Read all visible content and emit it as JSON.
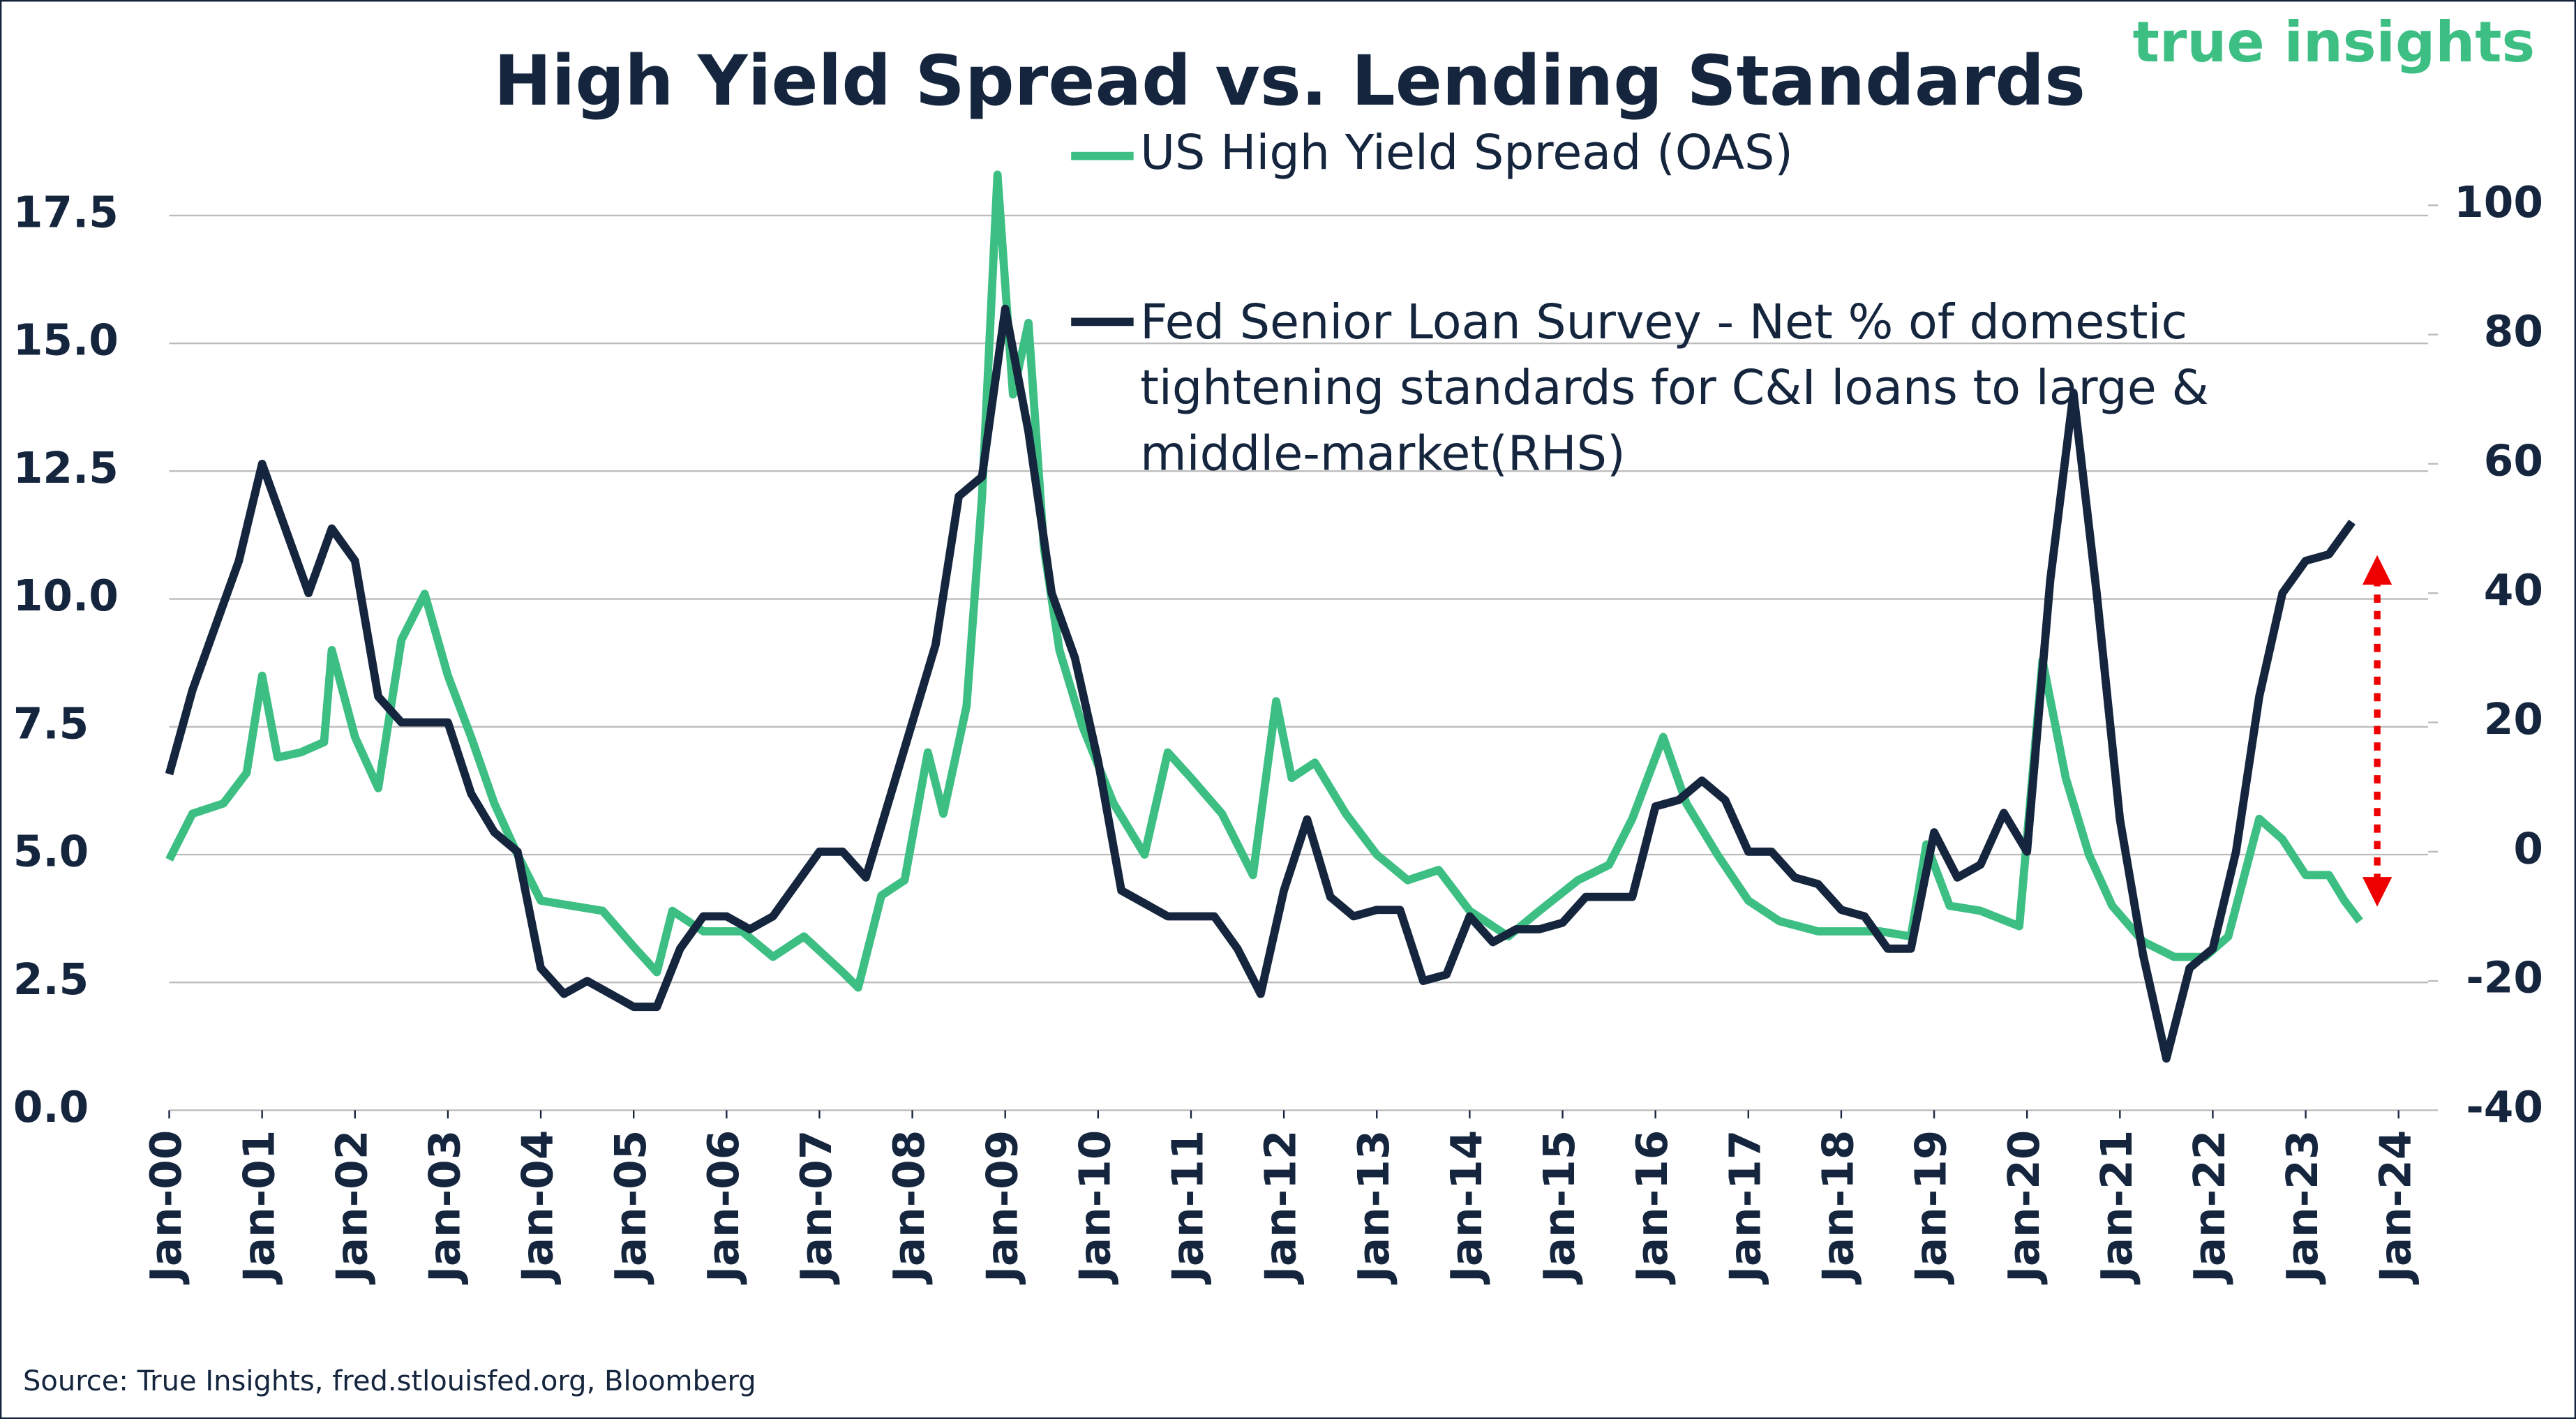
{
  "chart_data": {
    "type": "line",
    "title": "High Yield Spread vs. Lending Standards",
    "brand": "true insights",
    "source": "Source: True Insights, fred.stlouisfed.org, Bloomberg",
    "xlim": [
      "2000-01",
      "2024-01"
    ],
    "xticks": [
      {
        "value": "2000-01",
        "label": "Jan-00"
      },
      {
        "value": "2001-01",
        "label": "Jan-01"
      },
      {
        "value": "2002-01",
        "label": "Jan-02"
      },
      {
        "value": "2003-01",
        "label": "Jan-03"
      },
      {
        "value": "2004-01",
        "label": "Jan-04"
      },
      {
        "value": "2005-01",
        "label": "Jan-05"
      },
      {
        "value": "2006-01",
        "label": "Jan-06"
      },
      {
        "value": "2007-01",
        "label": "Jan-07"
      },
      {
        "value": "2008-01",
        "label": "Jan-08"
      },
      {
        "value": "2009-01",
        "label": "Jan-09"
      },
      {
        "value": "2010-01",
        "label": "Jan-10"
      },
      {
        "value": "2011-01",
        "label": "Jan-11"
      },
      {
        "value": "2012-01",
        "label": "Jan-12"
      },
      {
        "value": "2013-01",
        "label": "Jan-13"
      },
      {
        "value": "2014-01",
        "label": "Jan-14"
      },
      {
        "value": "2015-01",
        "label": "Jan-15"
      },
      {
        "value": "2016-01",
        "label": "Jan-16"
      },
      {
        "value": "2017-01",
        "label": "Jan-17"
      },
      {
        "value": "2018-01",
        "label": "Jan-18"
      },
      {
        "value": "2019-01",
        "label": "Jan-19"
      },
      {
        "value": "2020-01",
        "label": "Jan-20"
      },
      {
        "value": "2021-01",
        "label": "Jan-21"
      },
      {
        "value": "2022-01",
        "label": "Jan-22"
      },
      {
        "value": "2023-01",
        "label": "Jan-23"
      },
      {
        "value": "2024-01",
        "label": "Jan-24"
      }
    ],
    "ylim": [
      0,
      17.7
    ],
    "yticks": [
      {
        "value": 0,
        "label": "0.0"
      },
      2.5,
      {
        "value": 5,
        "label": "5.0"
      },
      7.5,
      {
        "value": 10,
        "label": "10.0"
      },
      12.5,
      {
        "value": 15,
        "label": "15.0"
      },
      17.5
    ],
    "y2lim": [
      -40,
      100
    ],
    "y2ticks": [
      -40,
      -20,
      0,
      20,
      40,
      60,
      80,
      100
    ],
    "grid": true,
    "series": [
      {
        "name": "US High Yield Spread (OAS)",
        "color": "#3dbf84",
        "x": [
          "2000-01",
          "2000-04",
          "2000-08",
          "2000-11",
          "2001-01",
          "2001-03",
          "2001-06",
          "2001-09",
          "2001-10",
          "2002-01",
          "2002-04",
          "2002-07",
          "2002-10",
          "2003-01",
          "2003-04",
          "2003-07",
          "2003-10",
          "2004-01",
          "2004-05",
          "2004-09",
          "2005-01",
          "2005-04",
          "2005-06",
          "2005-10",
          "2006-03",
          "2006-07",
          "2006-11",
          "2007-04",
          "2007-06",
          "2007-09",
          "2007-12",
          "2008-03",
          "2008-05",
          "2008-08",
          "2008-10",
          "2008-12",
          "2009-02",
          "2009-04",
          "2009-06",
          "2009-08",
          "2009-11",
          "2010-03",
          "2010-07",
          "2010-10",
          "2011-01",
          "2011-05",
          "2011-09",
          "2011-12",
          "2012-02",
          "2012-05",
          "2012-09",
          "2013-01",
          "2013-05",
          "2013-09",
          "2014-01",
          "2014-06",
          "2014-10",
          "2015-03",
          "2015-07",
          "2015-10",
          "2016-02",
          "2016-05",
          "2016-09",
          "2017-01",
          "2017-05",
          "2017-10",
          "2018-02",
          "2018-06",
          "2018-10",
          "2018-12",
          "2019-03",
          "2019-07",
          "2019-12",
          "2020-03",
          "2020-06",
          "2020-09",
          "2020-12",
          "2021-04",
          "2021-08",
          "2021-12",
          "2022-03",
          "2022-07",
          "2022-10",
          "2023-01",
          "2023-04",
          "2023-06",
          "2023-08"
        ],
        "values": [
          4.9,
          5.8,
          6.0,
          6.6,
          8.5,
          6.9,
          7.0,
          7.2,
          9.0,
          7.3,
          6.3,
          9.2,
          10.1,
          8.5,
          7.3,
          6.0,
          5.0,
          4.1,
          4.0,
          3.9,
          3.2,
          2.7,
          3.9,
          3.5,
          3.5,
          3.0,
          3.4,
          2.7,
          2.4,
          4.2,
          4.5,
          7.0,
          5.8,
          7.9,
          12.0,
          18.3,
          14.0,
          15.4,
          11.0,
          9.0,
          7.5,
          6.0,
          5.0,
          7.0,
          6.5,
          5.8,
          4.6,
          8.0,
          6.5,
          6.8,
          5.8,
          5.0,
          4.5,
          4.7,
          3.9,
          3.4,
          3.9,
          4.5,
          4.8,
          5.7,
          7.3,
          6.0,
          5.0,
          4.1,
          3.7,
          3.5,
          3.5,
          3.5,
          3.4,
          5.2,
          4.0,
          3.9,
          3.6,
          8.8,
          6.5,
          5.0,
          4.0,
          3.3,
          3.0,
          3.0,
          3.4,
          5.7,
          5.3,
          4.6,
          4.6,
          4.1,
          3.7
        ]
      },
      {
        "name": "Fed Senior Loan Survey - Net % of domestic tightening standards for C&I loans to large & middle-market(RHS)",
        "color": "#14253d",
        "axis": "y2",
        "x": [
          "2000-01",
          "2000-04",
          "2000-07",
          "2000-10",
          "2001-01",
          "2001-04",
          "2001-07",
          "2001-10",
          "2002-01",
          "2002-04",
          "2002-07",
          "2002-10",
          "2003-01",
          "2003-04",
          "2003-07",
          "2003-10",
          "2004-01",
          "2004-04",
          "2004-07",
          "2004-10",
          "2005-01",
          "2005-04",
          "2005-07",
          "2005-10",
          "2006-01",
          "2006-04",
          "2006-07",
          "2006-10",
          "2007-01",
          "2007-04",
          "2007-07",
          "2007-10",
          "2008-01",
          "2008-04",
          "2008-07",
          "2008-10",
          "2009-01",
          "2009-04",
          "2009-07",
          "2009-10",
          "2010-01",
          "2010-04",
          "2010-07",
          "2010-10",
          "2011-01",
          "2011-04",
          "2011-07",
          "2011-10",
          "2012-01",
          "2012-04",
          "2012-07",
          "2012-10",
          "2013-01",
          "2013-04",
          "2013-07",
          "2013-10",
          "2014-01",
          "2014-04",
          "2014-07",
          "2014-10",
          "2015-01",
          "2015-04",
          "2015-07",
          "2015-10",
          "2016-01",
          "2016-04",
          "2016-07",
          "2016-10",
          "2017-01",
          "2017-04",
          "2017-07",
          "2017-10",
          "2018-01",
          "2018-04",
          "2018-07",
          "2018-10",
          "2019-01",
          "2019-04",
          "2019-07",
          "2019-10",
          "2020-01",
          "2020-04",
          "2020-07",
          "2020-10",
          "2021-01",
          "2021-04",
          "2021-07",
          "2021-10",
          "2022-01",
          "2022-04",
          "2022-07",
          "2022-10",
          "2023-01",
          "2023-04",
          "2023-07"
        ],
        "values": [
          12,
          25,
          35,
          45,
          60,
          50,
          40,
          50,
          45,
          24,
          20,
          20,
          20,
          9,
          3,
          0,
          -18,
          -22,
          -20,
          -22,
          -24,
          -24,
          -15,
          -10,
          -10,
          -12,
          -10,
          -5,
          0,
          0,
          -4,
          8,
          20,
          32,
          55,
          58,
          84,
          65,
          40,
          30,
          14,
          -6,
          -8,
          -10,
          -10,
          -10,
          -15,
          -22,
          -6,
          5,
          -7,
          -10,
          -9,
          -9,
          -20,
          -19,
          -10,
          -14,
          -12,
          -12,
          -11,
          -7,
          -7,
          -7,
          7,
          8,
          11,
          8,
          0,
          0,
          -4,
          -5,
          -9,
          -10,
          -15,
          -15,
          3,
          -4,
          -2,
          6,
          0,
          42,
          71,
          40,
          5,
          -16,
          -32,
          -18,
          -15,
          0,
          24,
          40,
          45,
          46,
          51
        ]
      }
    ]
  }
}
